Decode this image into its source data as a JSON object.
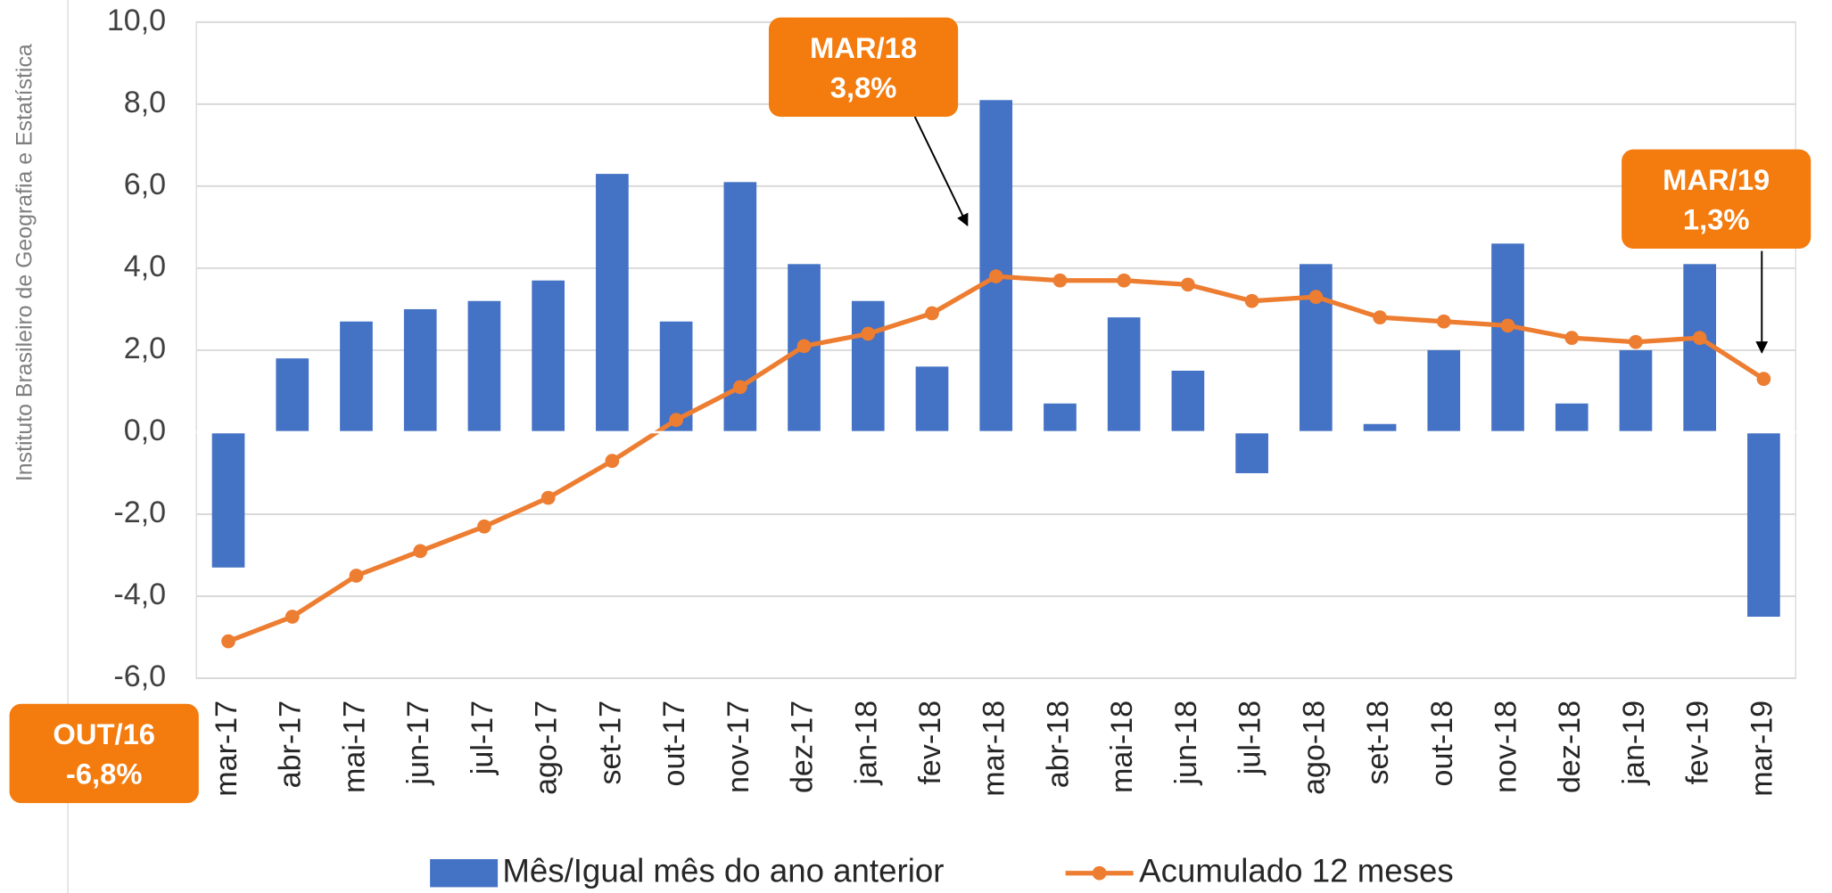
{
  "chart_data": {
    "type": "bar_line",
    "y_axis_label": "Instituto Brasileiro de Geografia e Estatística",
    "categories": [
      "mar-17",
      "abr-17",
      "mai-17",
      "jun-17",
      "jul-17",
      "ago-17",
      "set-17",
      "out-17",
      "nov-17",
      "dez-17",
      "jan-18",
      "fev-18",
      "mar-18",
      "abr-18",
      "mai-18",
      "jun-18",
      "jul-18",
      "ago-18",
      "set-18",
      "out-18",
      "nov-18",
      "dez-18",
      "jan-19",
      "fev-19",
      "mar-19"
    ],
    "series": [
      {
        "name": "Mês/Igual mês do ano anterior",
        "type": "bar",
        "color": "#4472c4",
        "values": [
          -3.3,
          1.8,
          2.7,
          3.0,
          3.2,
          3.7,
          6.3,
          2.7,
          6.1,
          4.1,
          3.2,
          1.6,
          8.1,
          0.7,
          2.8,
          1.5,
          -1.0,
          4.1,
          0.2,
          2.0,
          4.6,
          0.7,
          2.0,
          4.1,
          -4.5
        ]
      },
      {
        "name": "Acumulado 12 meses",
        "type": "line",
        "color": "#ed7d31",
        "values": [
          -5.1,
          -4.5,
          -3.5,
          -2.9,
          -2.3,
          -1.6,
          -0.7,
          0.3,
          1.1,
          2.1,
          2.4,
          2.9,
          3.8,
          3.7,
          3.7,
          3.6,
          3.2,
          3.3,
          2.8,
          2.7,
          2.6,
          2.3,
          2.2,
          2.3,
          1.3
        ]
      }
    ],
    "ylim": [
      -6,
      10
    ],
    "yticks": [
      {
        "value": -6,
        "label": "-6,0"
      },
      {
        "value": -4,
        "label": "-4,0"
      },
      {
        "value": -2,
        "label": "-2,0"
      },
      {
        "value": 0,
        "label": "0,0"
      },
      {
        "value": 2,
        "label": "2,0"
      },
      {
        "value": 4,
        "label": "4,0"
      },
      {
        "value": 6,
        "label": "6,0"
      },
      {
        "value": 8,
        "label": "8,0"
      },
      {
        "value": 10,
        "label": "10,0"
      }
    ],
    "grid": true,
    "legend": "bottom",
    "annotations": [
      {
        "lines": [
          "MAR/18",
          "3,8%"
        ],
        "color": "#f47b0d"
      },
      {
        "lines": [
          "MAR/19",
          "1,3%"
        ],
        "color": "#f47b0d"
      },
      {
        "lines": [
          "OUT/16",
          "-6,8%"
        ],
        "color": "#f47b0d"
      }
    ]
  }
}
